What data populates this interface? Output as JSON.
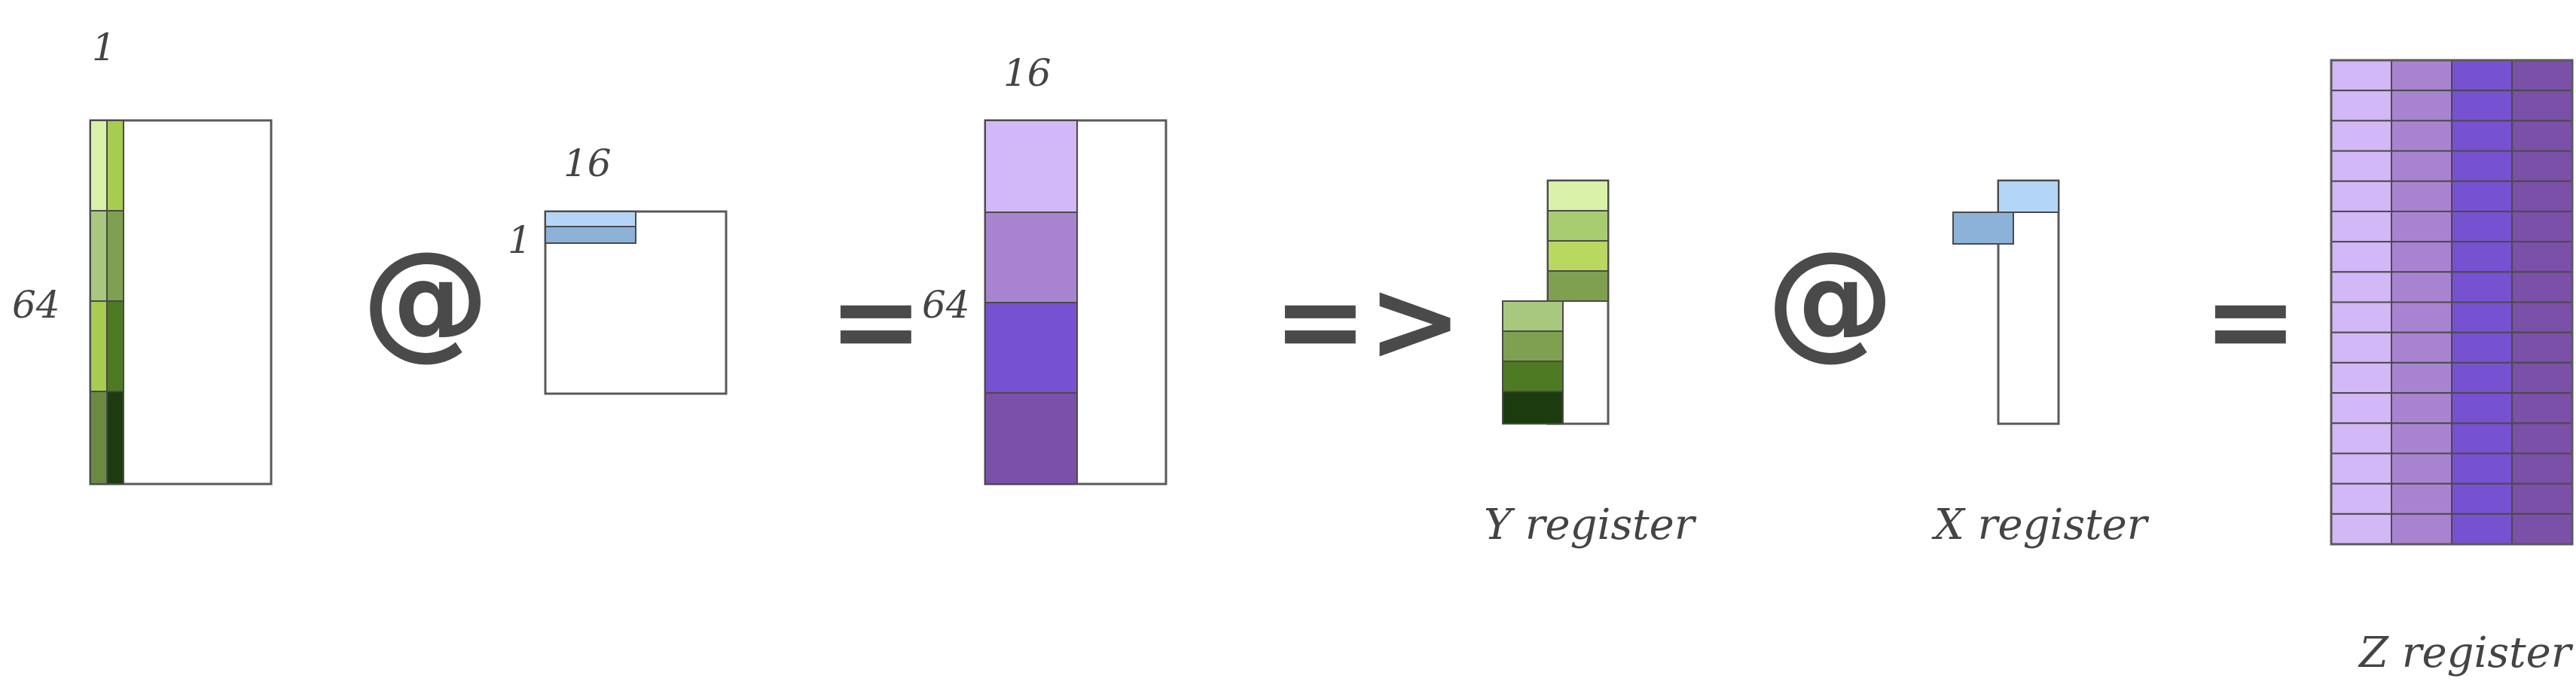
{
  "labels": {
    "a_top": "1",
    "a_side": "64",
    "b_top": "16",
    "b_side": "1",
    "c_top": "16",
    "c_side": "64",
    "y_register": "Y register",
    "x_register": "X register",
    "z_register": "Z register"
  },
  "operators": {
    "matmul_1": "@",
    "equals_1": "=",
    "implies": "=>",
    "matmul_2": "@",
    "equals_2": "="
  },
  "colors": {
    "green_1": "#d8f0a8",
    "green_2": "#a8cc70",
    "green_3": "#b8d860",
    "green_4": "#7ea050",
    "green_5": "#4e7a24",
    "green_6": "#1c3c10",
    "blue_light": "#b4d6f6",
    "blue_dark": "#8cb2d8",
    "purple_1": "#d2b8f6",
    "purple_2": "#a884d0",
    "purple_3": "#7652d0",
    "purple_4": "#7a50a8"
  }
}
